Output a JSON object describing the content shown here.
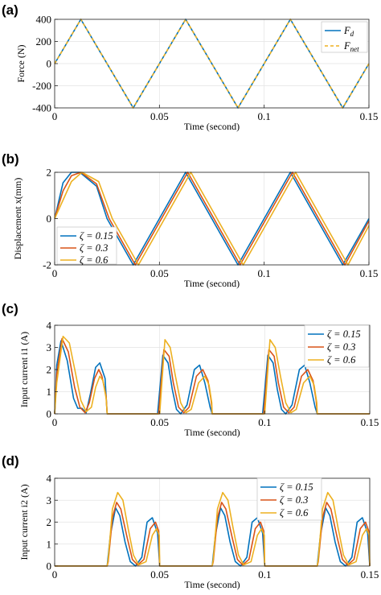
{
  "colors": {
    "blue": "#0072BD",
    "red": "#D95319",
    "yellow": "#EDB120"
  },
  "chart_data": [
    {
      "panel": "(a)",
      "type": "line",
      "xlabel": "Time (second)",
      "ylabel": "Force (N)",
      "xlim": [
        0,
        0.15
      ],
      "ylim": [
        -400,
        400
      ],
      "xticks": [
        0,
        0.05,
        0.1,
        0.15
      ],
      "xtick_labels": [
        "0",
        "0.05",
        "0.1",
        "0.15"
      ],
      "yticks": [
        -400,
        -200,
        0,
        200,
        400
      ],
      "ytick_labels": [
        "-400",
        "-200",
        "0",
        "200",
        "400"
      ],
      "grid": true,
      "legend_position": "top-right",
      "series": [
        {
          "name": "F_d",
          "label_main": "F",
          "label_sub": "d",
          "color": "#0072BD",
          "dash": "solid",
          "x": [
            0,
            0.0125,
            0.025,
            0.0375,
            0.05,
            0.0625,
            0.075,
            0.0875,
            0.1,
            0.1125,
            0.125,
            0.1375,
            0.15
          ],
          "y": [
            0,
            400,
            0,
            -400,
            0,
            400,
            0,
            -400,
            0,
            400,
            0,
            -400,
            0
          ]
        },
        {
          "name": "F_net",
          "label_main": "F",
          "label_sub": "net",
          "color": "#EDB120",
          "dash": "dashed",
          "x": [
            0,
            0.0125,
            0.025,
            0.0375,
            0.05,
            0.0625,
            0.075,
            0.0875,
            0.1,
            0.1125,
            0.125,
            0.1375,
            0.15
          ],
          "y": [
            0,
            400,
            0,
            -400,
            0,
            400,
            0,
            -400,
            0,
            400,
            0,
            -400,
            0
          ]
        }
      ]
    },
    {
      "panel": "(b)",
      "type": "line",
      "xlabel": "Time (second)",
      "ylabel": "Displacement x(mm)",
      "xlim": [
        0,
        0.15
      ],
      "ylim": [
        -2,
        2
      ],
      "xticks": [
        0,
        0.05,
        0.1,
        0.15
      ],
      "xtick_labels": [
        "0",
        "0.05",
        "0.1",
        "0.15"
      ],
      "yticks": [
        -2,
        0,
        2
      ],
      "ytick_labels": [
        "-2",
        "0",
        "2"
      ],
      "grid": true,
      "legend_position": "bottom-left",
      "series": [
        {
          "name": "ζ = 0.15",
          "color": "#0072BD",
          "x": [
            0,
            0.004,
            0.008,
            0.012,
            0.02,
            0.025,
            0.0375,
            0.05,
            0.0625,
            0.075,
            0.0875,
            0.1,
            0.1125,
            0.125,
            0.1375,
            0.15
          ],
          "y": [
            0,
            1.55,
            2.0,
            2.0,
            1.4,
            0.0,
            -2.0,
            0.0,
            2.0,
            0.0,
            -2.0,
            0.0,
            2.0,
            0.0,
            -2.0,
            0.0
          ]
        },
        {
          "name": "ζ = 0.3",
          "color": "#D95319",
          "x": [
            0,
            0.004,
            0.008,
            0.0125,
            0.02,
            0.026,
            0.0385,
            0.051,
            0.0635,
            0.076,
            0.0885,
            0.101,
            0.1135,
            0.126,
            0.1385,
            0.15
          ],
          "y": [
            0,
            1.2,
            1.85,
            2.0,
            1.5,
            0.0,
            -2.0,
            0.0,
            2.0,
            0.0,
            -2.0,
            0.0,
            2.0,
            0.0,
            -2.0,
            -0.1
          ]
        },
        {
          "name": "ζ = 0.6",
          "color": "#EDB120",
          "x": [
            0,
            0.004,
            0.008,
            0.013,
            0.021,
            0.0275,
            0.04,
            0.0525,
            0.065,
            0.0775,
            0.09,
            0.1025,
            0.115,
            0.1275,
            0.14,
            0.15
          ],
          "y": [
            0,
            0.8,
            1.6,
            2.0,
            1.6,
            0.0,
            -2.0,
            0.0,
            2.0,
            0.0,
            -2.0,
            0.0,
            2.0,
            0.0,
            -2.0,
            -0.3
          ]
        }
      ]
    },
    {
      "panel": "(c)",
      "type": "line",
      "xlabel": "Time (second)",
      "ylabel": "Input current i1 (A)",
      "xlim": [
        0,
        0.15
      ],
      "ylim": [
        0,
        4
      ],
      "xticks": [
        0,
        0.05,
        0.1,
        0.15
      ],
      "xtick_labels": [
        "0",
        "0.05",
        "0.1",
        "0.15"
      ],
      "yticks": [
        0,
        1,
        2,
        3,
        4
      ],
      "ytick_labels": [
        "0",
        "1",
        "2",
        "3",
        "4"
      ],
      "grid": true,
      "legend_position": "top-right",
      "series": [
        {
          "name": "ζ = 0.15",
          "color": "#0072BD",
          "x": [
            0,
            0.001,
            0.003,
            0.006,
            0.009,
            0.011,
            0.013,
            0.015,
            0.017,
            0.0195,
            0.0215,
            0.024,
            0.025,
            0.049,
            0.0515,
            0.054,
            0.056,
            0.058,
            0.06,
            0.063,
            0.0665,
            0.069,
            0.0715,
            0.074,
            0.075,
            0.099,
            0.1015,
            0.104,
            0.106,
            0.108,
            0.11,
            0.113,
            0.1165,
            0.119,
            0.1215,
            0.124,
            0.125,
            0.15
          ],
          "y": [
            0,
            2.2,
            3.3,
            2.4,
            0.7,
            0.25,
            0.25,
            0.05,
            0.9,
            2.1,
            2.3,
            1.6,
            0,
            0,
            2.65,
            2.3,
            1.1,
            0.2,
            0.0,
            0.4,
            2.0,
            2.2,
            1.4,
            0.3,
            0,
            0,
            2.65,
            2.3,
            1.1,
            0.2,
            0.0,
            0.4,
            2.0,
            2.2,
            1.4,
            0.3,
            0,
            0
          ]
        },
        {
          "name": "ζ = 0.3",
          "color": "#D95319",
          "x": [
            0,
            0.001,
            0.0035,
            0.0065,
            0.0095,
            0.012,
            0.0145,
            0.0165,
            0.019,
            0.021,
            0.0225,
            0.0245,
            0.025,
            0.0495,
            0.052,
            0.0545,
            0.0565,
            0.059,
            0.0615,
            0.064,
            0.0675,
            0.0705,
            0.073,
            0.0745,
            0.075,
            0.0995,
            0.102,
            0.1045,
            0.1065,
            0.109,
            0.1115,
            0.114,
            0.1175,
            0.1205,
            0.123,
            0.1245,
            0.125,
            0.15
          ],
          "y": [
            0,
            1.8,
            3.4,
            2.8,
            1.2,
            0.3,
            0.05,
            0.5,
            1.6,
            2.0,
            1.7,
            0.8,
            0,
            0,
            2.9,
            2.6,
            1.4,
            0.3,
            0.05,
            0.3,
            1.7,
            2.0,
            1.5,
            0.6,
            0,
            0,
            2.9,
            2.6,
            1.4,
            0.3,
            0.05,
            0.3,
            1.7,
            2.0,
            1.5,
            0.6,
            0,
            0
          ]
        },
        {
          "name": "ζ = 0.6",
          "color": "#EDB120",
          "x": [
            0,
            0.001,
            0.004,
            0.007,
            0.01,
            0.0125,
            0.015,
            0.0175,
            0.0195,
            0.0215,
            0.023,
            0.0245,
            0.025,
            0.05,
            0.0525,
            0.055,
            0.0575,
            0.06,
            0.0625,
            0.065,
            0.0685,
            0.0715,
            0.0735,
            0.0748,
            0.075,
            0.1,
            0.1025,
            0.105,
            0.1075,
            0.11,
            0.1125,
            0.115,
            0.1185,
            0.1215,
            0.1235,
            0.1248,
            0.125,
            0.15
          ],
          "y": [
            0,
            1.4,
            3.5,
            3.2,
            1.8,
            0.6,
            0.1,
            0.3,
            1.2,
            1.7,
            1.5,
            0.7,
            0,
            0,
            3.35,
            3.0,
            1.7,
            0.5,
            0.05,
            0.2,
            1.4,
            1.7,
            1.3,
            0.5,
            0,
            0,
            3.35,
            3.0,
            1.7,
            0.5,
            0.05,
            0.2,
            1.4,
            1.7,
            1.3,
            0.5,
            0,
            0
          ]
        }
      ]
    },
    {
      "panel": "(d)",
      "type": "line",
      "xlabel": "Time (second)",
      "ylabel": "Input current i2 (A)",
      "xlim": [
        0,
        0.15
      ],
      "ylim": [
        0,
        4
      ],
      "xticks": [
        0,
        0.05,
        0.1,
        0.15
      ],
      "xtick_labels": [
        "0",
        "0.05",
        "0.1",
        "0.15"
      ],
      "yticks": [
        0,
        1,
        2,
        3,
        4
      ],
      "ytick_labels": [
        "0",
        "1",
        "2",
        "3",
        "4"
      ],
      "grid": true,
      "legend_position": "top-right",
      "series": [
        {
          "name": "ζ = 0.15",
          "color": "#0072BD",
          "x": [
            0,
            0.024,
            0.025,
            0.0265,
            0.029,
            0.031,
            0.0335,
            0.036,
            0.0385,
            0.0415,
            0.044,
            0.0465,
            0.049,
            0.05,
            0.074,
            0.075,
            0.0765,
            0.079,
            0.081,
            0.0835,
            0.086,
            0.0885,
            0.0915,
            0.094,
            0.0965,
            0.099,
            0.1,
            0.124,
            0.125,
            0.1265,
            0.129,
            0.131,
            0.1335,
            0.136,
            0.1385,
            0.1415,
            0.144,
            0.1465,
            0.149,
            0.15
          ],
          "y": [
            0,
            0,
            0,
            1.4,
            2.65,
            2.3,
            1.1,
            0.2,
            0.0,
            0.4,
            2.0,
            2.2,
            1.5,
            0,
            0,
            0,
            1.4,
            2.65,
            2.3,
            1.1,
            0.2,
            0.0,
            0.4,
            2.0,
            2.2,
            1.5,
            0,
            0,
            0,
            1.4,
            2.65,
            2.3,
            1.1,
            0.2,
            0.0,
            0.4,
            2.0,
            2.2,
            1.5,
            0
          ]
        },
        {
          "name": "ζ = 0.3",
          "color": "#D95319",
          "x": [
            0,
            0.025,
            0.0255,
            0.0275,
            0.0295,
            0.0315,
            0.0345,
            0.037,
            0.0395,
            0.0425,
            0.0455,
            0.048,
            0.0495,
            0.05,
            0.075,
            0.0755,
            0.0775,
            0.0795,
            0.0815,
            0.0845,
            0.087,
            0.0895,
            0.0925,
            0.0955,
            0.098,
            0.0995,
            0.1,
            0.125,
            0.1255,
            0.1275,
            0.1295,
            0.1315,
            0.1345,
            0.137,
            0.1395,
            0.1425,
            0.1455,
            0.148,
            0.1495,
            0.15
          ],
          "y": [
            0,
            0,
            0.2,
            2.2,
            2.9,
            2.6,
            1.3,
            0.3,
            0.05,
            0.3,
            1.7,
            2.0,
            1.6,
            0,
            0,
            0.2,
            2.2,
            2.9,
            2.6,
            1.3,
            0.3,
            0.05,
            0.3,
            1.7,
            2.0,
            1.6,
            0,
            0,
            0.2,
            2.2,
            2.9,
            2.6,
            1.3,
            0.3,
            0.05,
            0.3,
            1.7,
            2.0,
            1.6,
            0
          ]
        },
        {
          "name": "ζ = 0.6",
          "color": "#EDB120",
          "x": [
            0,
            0.025,
            0.0255,
            0.0275,
            0.03,
            0.0325,
            0.035,
            0.0375,
            0.04,
            0.0435,
            0.0465,
            0.0485,
            0.0498,
            0.05,
            0.075,
            0.0755,
            0.0775,
            0.08,
            0.0825,
            0.085,
            0.0875,
            0.09,
            0.0935,
            0.0965,
            0.0985,
            0.0998,
            0.1,
            0.125,
            0.1255,
            0.1275,
            0.13,
            0.1325,
            0.135,
            0.1375,
            0.14,
            0.1435,
            0.1465,
            0.1485,
            0.1498,
            0.15
          ],
          "y": [
            0,
            0,
            0.3,
            2.6,
            3.35,
            3.0,
            1.7,
            0.5,
            0.05,
            0.2,
            1.4,
            1.7,
            1.4,
            0,
            0,
            0.3,
            2.6,
            3.35,
            3.0,
            1.7,
            0.5,
            0.05,
            0.2,
            1.4,
            1.7,
            1.4,
            0,
            0,
            0.3,
            2.6,
            3.35,
            3.0,
            1.7,
            0.5,
            0.05,
            0.2,
            1.4,
            1.7,
            1.4,
            0
          ]
        }
      ]
    }
  ]
}
